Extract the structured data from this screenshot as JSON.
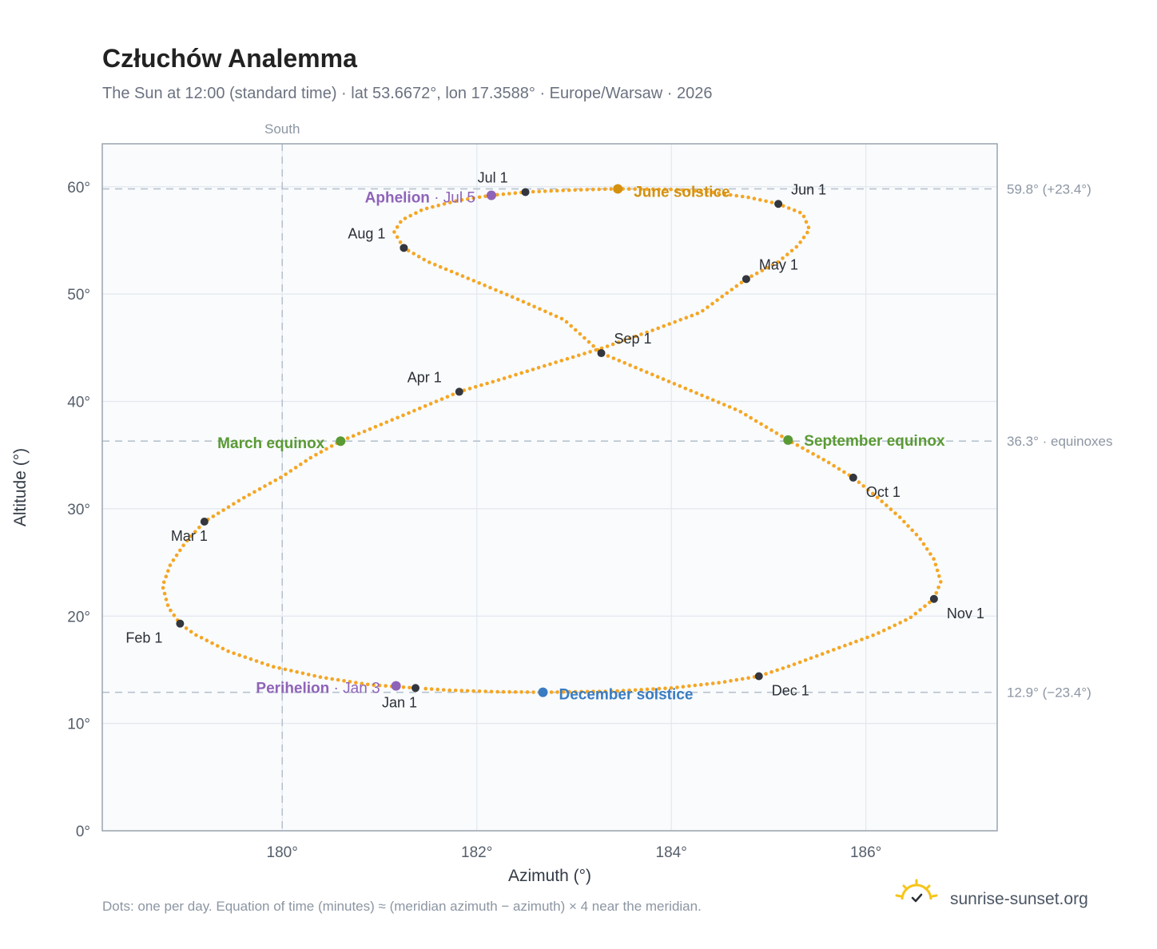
{
  "chart_data": {
    "type": "scatter",
    "title": "Człuchów Analemma",
    "subtitle": "The Sun at 12:00 (standard time) · lat 53.6672°, lon 17.3588° · Europe/Warsaw · 2026",
    "xlabel": "Azimuth (°)",
    "ylabel": "Altitude (°)",
    "xlim": [
      178.15,
      187.35
    ],
    "ylim": [
      0,
      64
    ],
    "x_ticks": [
      {
        "value": 180,
        "label": "180°"
      },
      {
        "value": 182,
        "label": "182°"
      },
      {
        "value": 184,
        "label": "184°"
      },
      {
        "value": 186,
        "label": "186°"
      }
    ],
    "y_ticks": [
      {
        "value": 0,
        "label": "0°"
      },
      {
        "value": 10,
        "label": "10°"
      },
      {
        "value": 20,
        "label": "20°"
      },
      {
        "value": 30,
        "label": "30°"
      },
      {
        "value": 40,
        "label": "40°"
      },
      {
        "value": 50,
        "label": "50°"
      },
      {
        "value": 60,
        "label": "60°"
      }
    ],
    "grid": true,
    "meridian": {
      "azimuth": 180,
      "label": "South"
    },
    "reference_lines": [
      {
        "altitude": 59.8,
        "label": "59.8° (+23.4°)"
      },
      {
        "altitude": 36.3,
        "label": "36.3° · equinoxes"
      },
      {
        "altitude": 12.9,
        "label": "12.9° (−23.4°)"
      }
    ],
    "series": [
      {
        "dot_color": "#f5a623",
        "points": [
          [
            181.37,
            13.3
          ],
          [
            180.9,
            13.6
          ],
          [
            180.4,
            14.3
          ],
          [
            179.9,
            15.3
          ],
          [
            179.45,
            16.7
          ],
          [
            179.1,
            18.3
          ],
          [
            178.95,
            19.3
          ],
          [
            178.83,
            20.8
          ],
          [
            178.77,
            22.8
          ],
          [
            178.85,
            24.8
          ],
          [
            179.0,
            26.8
          ],
          [
            179.2,
            28.8
          ],
          [
            179.6,
            31.0
          ],
          [
            180.0,
            33.0
          ],
          [
            180.3,
            34.8
          ],
          [
            180.6,
            36.3
          ],
          [
            180.95,
            37.6
          ],
          [
            181.4,
            39.3
          ],
          [
            181.82,
            40.9
          ],
          [
            182.3,
            42.2
          ],
          [
            182.8,
            43.6
          ],
          [
            183.3,
            45.0
          ],
          [
            183.8,
            46.6
          ],
          [
            184.3,
            48.3
          ],
          [
            184.77,
            51.4
          ],
          [
            185.1,
            53.0
          ],
          [
            185.3,
            54.5
          ],
          [
            185.42,
            56.0
          ],
          [
            185.35,
            57.5
          ],
          [
            185.1,
            58.4
          ],
          [
            184.8,
            59.0
          ],
          [
            184.4,
            59.5
          ],
          [
            184.0,
            59.75
          ],
          [
            183.45,
            59.8
          ],
          [
            183.0,
            59.7
          ],
          [
            182.5,
            59.5
          ],
          [
            182.15,
            59.2
          ],
          [
            181.8,
            58.7
          ],
          [
            181.45,
            57.9
          ],
          [
            181.23,
            56.9
          ],
          [
            181.15,
            55.8
          ],
          [
            181.25,
            54.3
          ],
          [
            181.5,
            53.0
          ],
          [
            181.9,
            51.5
          ],
          [
            182.4,
            49.6
          ],
          [
            182.9,
            47.6
          ],
          [
            183.28,
            44.5
          ],
          [
            183.7,
            42.9
          ],
          [
            184.2,
            41.0
          ],
          [
            184.7,
            39.1
          ],
          [
            185.2,
            36.4
          ],
          [
            185.6,
            34.4
          ],
          [
            185.87,
            32.9
          ],
          [
            186.1,
            31.2
          ],
          [
            186.35,
            29.2
          ],
          [
            186.55,
            27.3
          ],
          [
            186.7,
            25.3
          ],
          [
            186.77,
            23.2
          ],
          [
            186.7,
            21.6
          ],
          [
            186.45,
            19.8
          ],
          [
            186.1,
            18.3
          ],
          [
            185.65,
            16.8
          ],
          [
            185.2,
            15.3
          ],
          [
            184.9,
            14.4
          ],
          [
            184.5,
            13.8
          ],
          [
            184.0,
            13.3
          ],
          [
            183.4,
            13.0
          ],
          [
            182.68,
            12.9
          ],
          [
            182.2,
            12.95
          ],
          [
            181.7,
            13.1
          ],
          [
            181.37,
            13.3
          ]
        ]
      }
    ],
    "month_markers": [
      {
        "label": "Jan 1",
        "az": 181.37,
        "alt": 13.3,
        "dot_color": "#33373d"
      },
      {
        "label": "Feb 1",
        "az": 178.95,
        "alt": 19.3,
        "dot_color": "#33373d"
      },
      {
        "label": "Mar 1",
        "az": 179.2,
        "alt": 28.8,
        "dot_color": "#33373d"
      },
      {
        "label": "Apr 1",
        "az": 181.82,
        "alt": 40.9,
        "dot_color": "#33373d"
      },
      {
        "label": "May 1",
        "az": 184.77,
        "alt": 51.4,
        "dot_color": "#33373d"
      },
      {
        "label": "Jun 1",
        "az": 185.1,
        "alt": 58.4,
        "dot_color": "#33373d"
      },
      {
        "label": "Jul 1",
        "az": 182.5,
        "alt": 59.5,
        "dot_color": "#33373d"
      },
      {
        "label": "Aug 1",
        "az": 181.25,
        "alt": 54.3,
        "dot_color": "#33373d"
      },
      {
        "label": "Sep 1",
        "az": 183.28,
        "alt": 44.5,
        "dot_color": "#33373d"
      },
      {
        "label": "Oct 1",
        "az": 185.87,
        "alt": 32.9,
        "dot_color": "#33373d"
      },
      {
        "label": "Nov 1",
        "az": 186.7,
        "alt": 21.6,
        "dot_color": "#33373d"
      },
      {
        "label": "Dec 1",
        "az": 184.9,
        "alt": 14.4,
        "dot_color": "#33373d"
      }
    ],
    "events": [
      {
        "label": "June solstice",
        "sub": "",
        "az": 183.45,
        "alt": 59.8,
        "color": "#d4910f"
      },
      {
        "label": "Aphelion",
        "sub": " · Jul 5",
        "az": 182.15,
        "alt": 59.2,
        "color": "#8f63b8"
      },
      {
        "label": "March equinox",
        "sub": "",
        "az": 180.6,
        "alt": 36.3,
        "color": "#5a9a34"
      },
      {
        "label": "September equinox",
        "sub": "",
        "az": 185.2,
        "alt": 36.4,
        "color": "#5a9a34"
      },
      {
        "label": "Perihelion",
        "sub": " · Jan 3",
        "az": 181.17,
        "alt": 13.5,
        "color": "#8f63b8"
      },
      {
        "label": "December solstice",
        "sub": "",
        "az": 182.68,
        "alt": 12.9,
        "color": "#3a7cc2"
      }
    ]
  },
  "footnote": "Dots: one per day. Equation of time (minutes) ≈ (meridian azimuth − azimuth) × 4 near the meridian.",
  "brand": {
    "name": "sunrise-sunset.org",
    "icon": "sun-logo-icon",
    "icon_color": "#f5c518"
  }
}
